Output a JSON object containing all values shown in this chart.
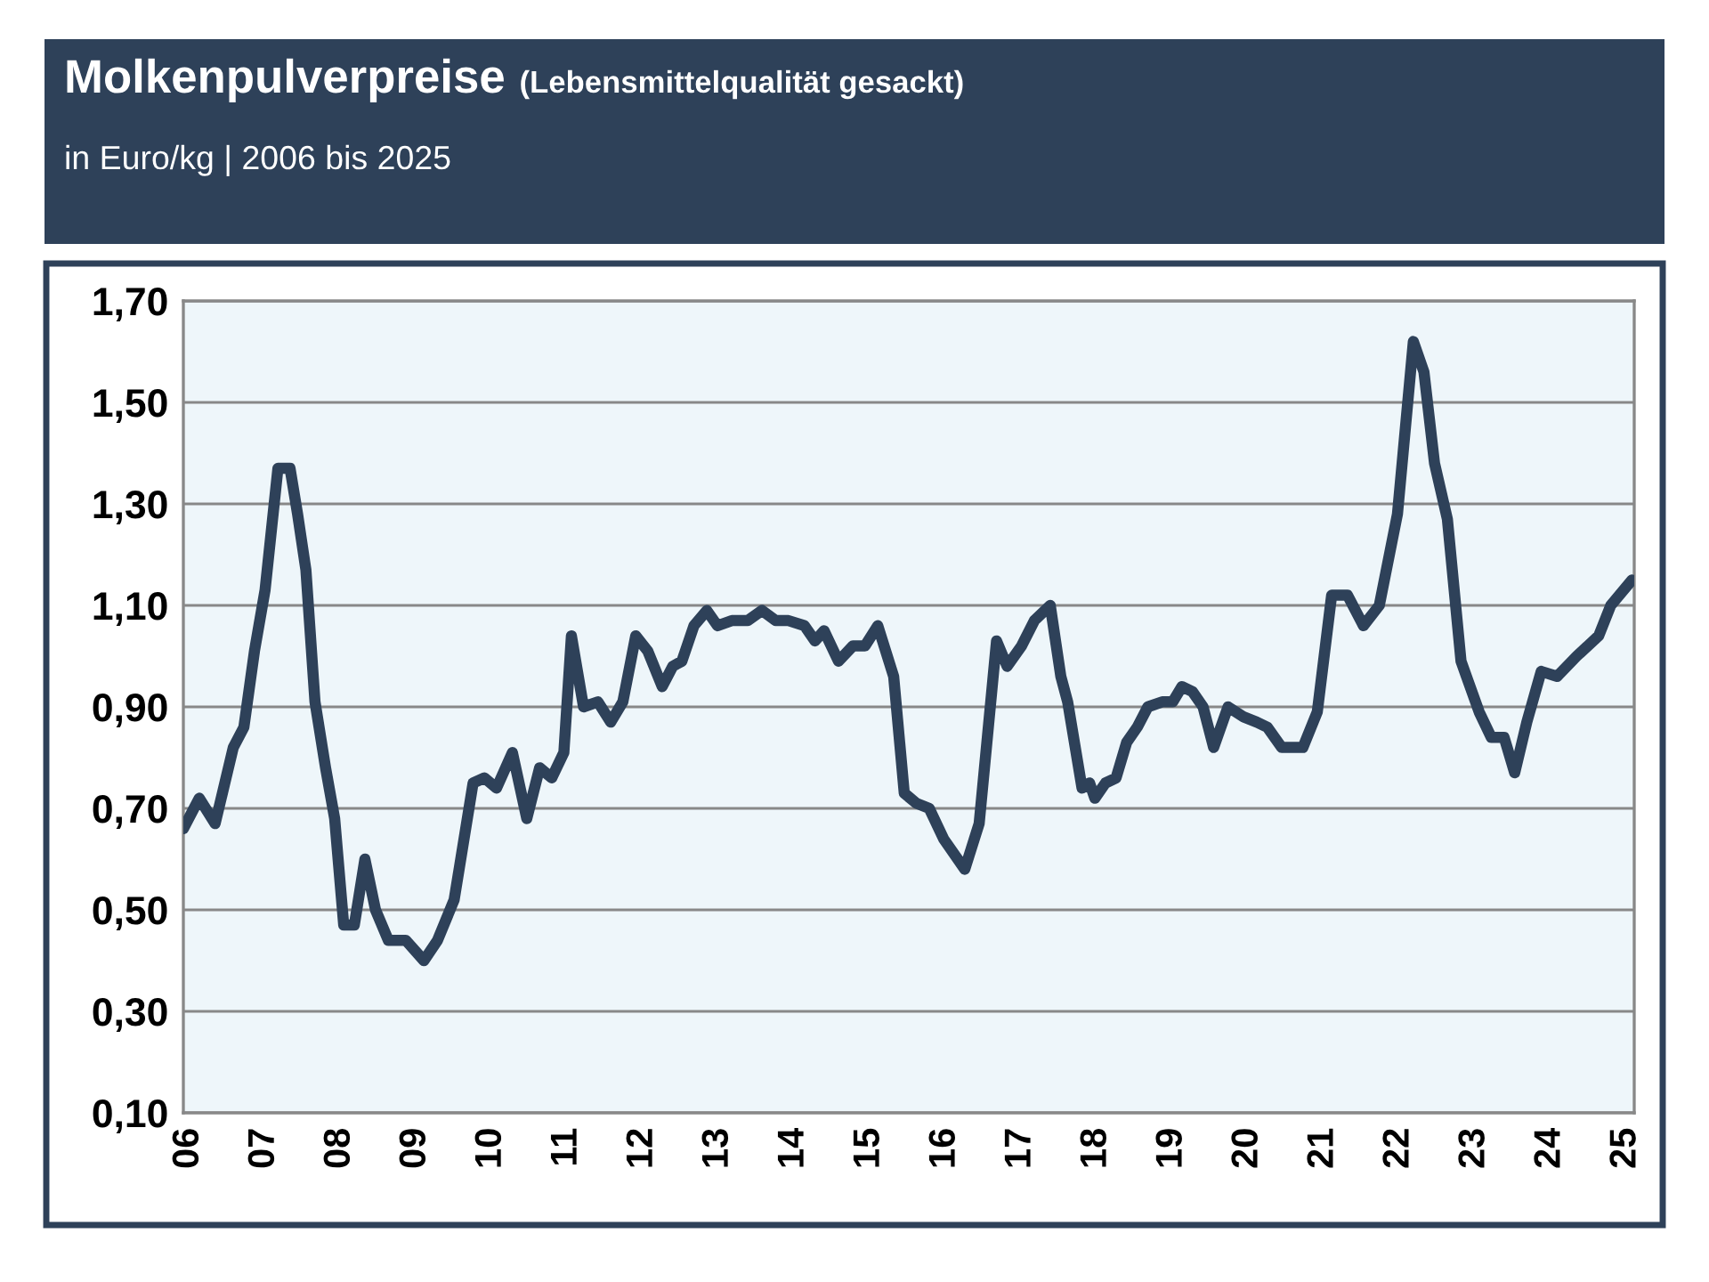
{
  "chart_data": {
    "type": "line",
    "title": "Molkenpulverpreise",
    "subtitle": "(Lebensmittelqualität gesackt)",
    "annotations": [
      "in Euro/kg | 2006 bis 2025"
    ],
    "x": [
      2005.93,
      2006.14,
      2006.35,
      2006.59,
      2006.73,
      2006.87,
      2007.01,
      2007.18,
      2007.34,
      2007.44,
      2007.55,
      2007.67,
      2007.81,
      2007.93,
      2008.05,
      2008.19,
      2008.33,
      2008.47,
      2008.64,
      2008.87,
      2009.11,
      2009.29,
      2009.51,
      2009.76,
      2009.91,
      2010.07,
      2010.28,
      2010.47,
      2010.64,
      2010.8,
      2010.96,
      2011.06,
      2011.22,
      2011.41,
      2011.58,
      2011.74,
      2011.91,
      2012.07,
      2012.26,
      2012.4,
      2012.52,
      2012.68,
      2012.85,
      2012.99,
      2013.18,
      2013.39,
      2013.58,
      2013.76,
      2013.93,
      2014.14,
      2014.28,
      2014.4,
      2014.59,
      2014.78,
      2014.94,
      2015.11,
      2015.32,
      2015.46,
      2015.62,
      2015.79,
      2015.98,
      2016.26,
      2016.45,
      2016.68,
      2016.82,
      2017.01,
      2017.18,
      2017.39,
      2017.53,
      2017.62,
      2017.81,
      2017.91,
      2017.98,
      2018.12,
      2018.26,
      2018.4,
      2018.54,
      2018.68,
      2018.87,
      2019.01,
      2019.13,
      2019.27,
      2019.41,
      2019.55,
      2019.74,
      2019.95,
      2020.12,
      2020.26,
      2020.45,
      2020.73,
      2020.92,
      2021.11,
      2021.32,
      2021.53,
      2021.74,
      2021.98,
      2022.19,
      2022.33,
      2022.47,
      2022.64,
      2022.82,
      2023.06,
      2023.22,
      2023.39,
      2023.53,
      2023.69,
      2023.88,
      2024.09,
      2024.35,
      2024.64,
      2024.8,
      2025.08
    ],
    "series": [
      {
        "color": "#2e4159",
        "values": [
          0.66,
          0.72,
          0.67,
          0.82,
          0.86,
          1.01,
          1.13,
          1.37,
          1.37,
          1.28,
          1.17,
          0.91,
          0.78,
          0.68,
          0.47,
          0.47,
          0.6,
          0.5,
          0.44,
          0.44,
          0.4,
          0.44,
          0.52,
          0.75,
          0.76,
          0.74,
          0.81,
          0.68,
          0.78,
          0.76,
          0.81,
          1.04,
          0.9,
          0.91,
          0.87,
          0.91,
          1.04,
          1.01,
          0.94,
          0.98,
          0.99,
          1.06,
          1.09,
          1.06,
          1.07,
          1.07,
          1.09,
          1.07,
          1.07,
          1.06,
          1.03,
          1.05,
          0.99,
          1.02,
          1.02,
          1.06,
          0.96,
          0.73,
          0.71,
          0.7,
          0.64,
          0.58,
          0.67,
          1.03,
          0.98,
          1.02,
          1.07,
          1.1,
          0.96,
          0.91,
          0.74,
          0.75,
          0.72,
          0.75,
          0.76,
          0.83,
          0.86,
          0.9,
          0.91,
          0.91,
          0.94,
          0.93,
          0.9,
          0.82,
          0.9,
          0.88,
          0.87,
          0.86,
          0.82,
          0.82,
          0.89,
          1.12,
          1.12,
          1.06,
          1.1,
          1.28,
          1.62,
          1.56,
          1.38,
          1.27,
          0.99,
          0.89,
          0.84,
          0.84,
          0.77,
          0.87,
          0.97,
          0.96,
          1.0,
          1.04,
          1.1,
          1.15
        ]
      }
    ],
    "xlim": [
      2005.93,
      2025.11
    ],
    "xticks": [
      {
        "value": 2006,
        "label": "06"
      },
      {
        "value": 2007,
        "label": "07"
      },
      {
        "value": 2008,
        "label": "08"
      },
      {
        "value": 2009,
        "label": "09"
      },
      {
        "value": 2010,
        "label": "10"
      },
      {
        "value": 2011,
        "label": "11"
      },
      {
        "value": 2012,
        "label": "12"
      },
      {
        "value": 2013,
        "label": "13"
      },
      {
        "value": 2014,
        "label": "14"
      },
      {
        "value": 2015,
        "label": "15"
      },
      {
        "value": 2016,
        "label": "16"
      },
      {
        "value": 2017,
        "label": "17"
      },
      {
        "value": 2018,
        "label": "18"
      },
      {
        "value": 2019,
        "label": "19"
      },
      {
        "value": 2020,
        "label": "20"
      },
      {
        "value": 2021,
        "label": "21"
      },
      {
        "value": 2022,
        "label": "22"
      },
      {
        "value": 2023,
        "label": "23"
      },
      {
        "value": 2024,
        "label": "24"
      },
      {
        "value": 2025,
        "label": "25"
      }
    ],
    "ylim": [
      0.1,
      1.7
    ],
    "yticks": [
      {
        "value": 0.1,
        "label": "0,10"
      },
      {
        "value": 0.3,
        "label": "0,30"
      },
      {
        "value": 0.5,
        "label": "0,50"
      },
      {
        "value": 0.7,
        "label": "0,70"
      },
      {
        "value": 0.9,
        "label": "0,90"
      },
      {
        "value": 1.1,
        "label": "1,10"
      },
      {
        "value": 1.3,
        "label": "1,30"
      },
      {
        "value": 1.5,
        "label": "1,50"
      },
      {
        "value": 1.7,
        "label": "1,70"
      }
    ],
    "grid": "y",
    "legend": false,
    "marker": "none",
    "line_style": "solid"
  }
}
